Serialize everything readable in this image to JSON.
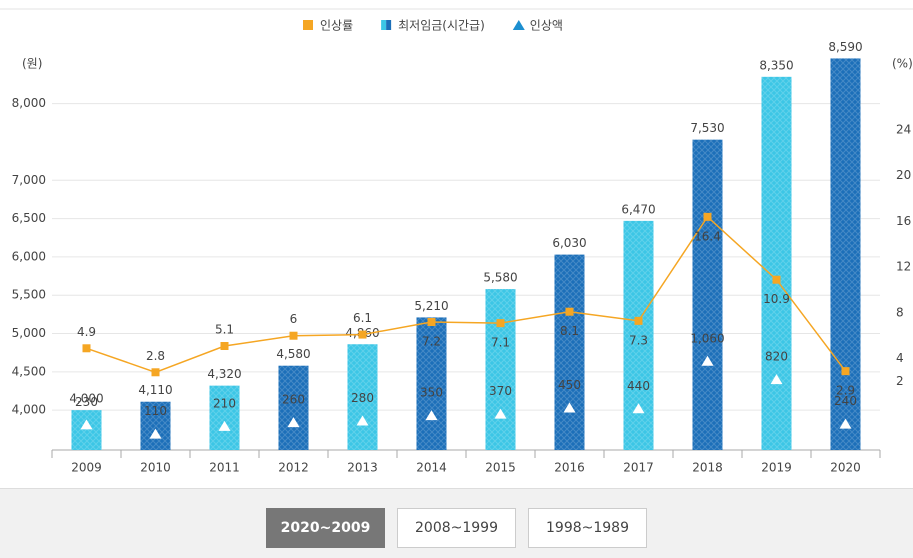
{
  "chart_data": {
    "type": "bar",
    "y_label": "(원)",
    "y2_label": "(%)",
    "categories": [
      "2009",
      "2010",
      "2011",
      "2012",
      "2013",
      "2014",
      "2015",
      "2016",
      "2017",
      "2018",
      "2019",
      "2020"
    ],
    "series": [
      {
        "name": "인상률",
        "type": "line",
        "axis": "y2",
        "color": "#f5a623",
        "values": [
          4.9,
          2.8,
          5.1,
          6.0,
          6.1,
          7.2,
          7.1,
          8.1,
          7.3,
          16.4,
          10.9,
          2.9
        ]
      },
      {
        "name": "최저임금(시간급)",
        "type": "bar",
        "colors": [
          "#3cc6e6",
          "#1c6fb9",
          "#3cc6e6",
          "#1c6fb9",
          "#3cc6e6",
          "#1c6fb9",
          "#3cc6e6",
          "#1c6fb9",
          "#3cc6e6",
          "#1c6fb9",
          "#3cc6e6",
          "#1c6fb9"
        ],
        "label_color": "#1a7fc4",
        "values": [
          4000,
          4110,
          4320,
          4580,
          4860,
          5210,
          5580,
          6030,
          6470,
          7530,
          8350,
          8590
        ],
        "value_labels": [
          "4,000",
          "4,110",
          "4,320",
          "4,580",
          "4,860",
          "5,210",
          "5,580",
          "6,030",
          "6,470",
          "7,530",
          "8,350",
          "8,590"
        ]
      },
      {
        "name": "인상액",
        "type": "marker",
        "color": "#ffffff",
        "legend_color": "#1c8fd0",
        "values": [
          230,
          110,
          210,
          260,
          280,
          350,
          370,
          450,
          440,
          1060,
          820,
          240
        ],
        "value_labels": [
          "230",
          "110",
          "210",
          "260",
          "280",
          "350",
          "370",
          "450",
          "440",
          "1,060",
          "820",
          "240"
        ]
      }
    ],
    "ylim": [
      3480,
      8700
    ],
    "yticks": [
      {
        "value": 4000,
        "label": "4,000"
      },
      {
        "value": 4500,
        "label": "4,500"
      },
      {
        "value": 5000,
        "label": "5,000"
      },
      {
        "value": 5500,
        "label": "5,500"
      },
      {
        "value": 6000,
        "label": "6,000"
      },
      {
        "value": 6500,
        "label": "6,500"
      },
      {
        "value": 7000,
        "label": "7,000"
      },
      {
        "value": 8000,
        "label": "8,000"
      }
    ],
    "y2lim": [
      -4,
      31
    ],
    "y2ticks": [
      2,
      4,
      8,
      12,
      16,
      20,
      24
    ],
    "grid": true
  },
  "periods": {
    "items": [
      "2020~2009",
      "2008~1999",
      "1998~1989"
    ],
    "active": 0
  }
}
